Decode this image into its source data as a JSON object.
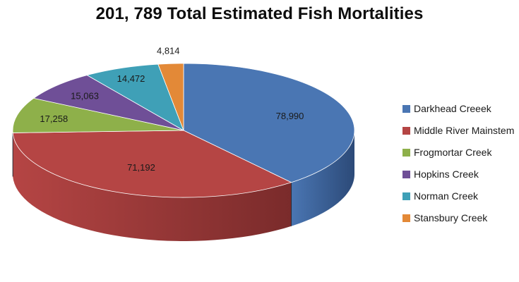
{
  "chart_data": {
    "type": "pie",
    "title": "201, 789 Total Estimated Fish Mortalities",
    "legend_position": "right",
    "style": "3d-pie",
    "series": [
      {
        "categories": [
          "Darkhead Creeek",
          "Middle River Mainstem",
          "Frogmortar Creek",
          "Hopkins Creek",
          "Norman Creek",
          "Stansbury Creek"
        ],
        "values": [
          78990,
          71192,
          17258,
          15063,
          14472,
          4814
        ]
      }
    ],
    "data_labels": [
      "78,990",
      "71,192",
      "17,258",
      "15,063",
      "14,472",
      "4,814"
    ],
    "colors": [
      "#4a76b3",
      "#b54544",
      "#8eb04a",
      "#6f4f97",
      "#3fa0b7",
      "#e38937"
    ],
    "side_colors": [
      "#2c4a78",
      "#7a2b2b",
      "#5e7a2e",
      "#4a3466",
      "#2a6c7c",
      "#a85f22"
    ]
  }
}
